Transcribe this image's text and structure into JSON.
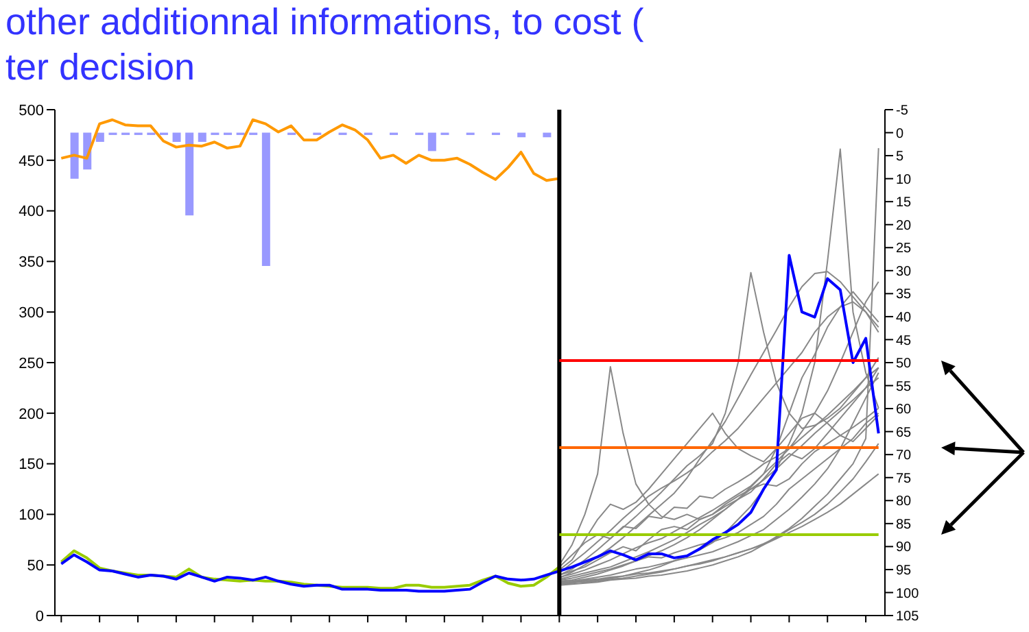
{
  "chart_data": {
    "type": "line",
    "annotations": [
      "other additionnal informations,  to cost (",
      "ter decision"
    ],
    "categories": [
      null,
      null,
      null,
      null,
      null,
      null,
      null,
      null,
      null,
      null,
      null,
      null,
      null,
      null,
      null,
      null,
      null,
      null,
      null,
      null,
      null,
      null,
      null,
      null,
      null,
      null,
      null,
      null,
      null,
      null,
      null,
      null,
      null,
      null,
      null,
      null,
      null,
      null,
      null,
      null,
      null,
      null,
      null,
      null,
      null,
      null,
      null,
      null,
      null,
      null,
      null,
      null,
      null,
      null,
      null,
      null,
      null,
      null,
      null,
      null,
      null,
      null,
      null,
      null,
      null
    ],
    "ylim": [
      0,
      500
    ],
    "yticks": [
      0,
      50,
      100,
      150,
      200,
      250,
      300,
      350,
      400,
      450,
      500
    ],
    "y2lim": [
      105,
      -5
    ],
    "y2ticks": [
      -5,
      0,
      5,
      10,
      15,
      20,
      25,
      30,
      35,
      40,
      45,
      50,
      55,
      60,
      65,
      70,
      75,
      80,
      85,
      90,
      95,
      100,
      105
    ],
    "grid": false,
    "legend": false,
    "marker": "none",
    "ref_lines": [
      {
        "axis": "x",
        "color": "#000000"
      },
      {
        "axis": "y",
        "value": 252,
        "color": "#ff0000"
      },
      {
        "axis": "y",
        "value": 166,
        "color": "#ff6600"
      },
      {
        "axis": "y",
        "value": 80,
        "color": "#99cc00"
      }
    ],
    "series": [
      {
        "type": "bar",
        "axis": "y2",
        "color": "#9999ff",
        "values": [
          null,
          10,
          8,
          2,
          0.5,
          0.5,
          0.5,
          0.5,
          0.5,
          2,
          18,
          2,
          0.5,
          0.5,
          0.5,
          0.5,
          29,
          null,
          0.5,
          null,
          0.5,
          null,
          0.5,
          null,
          0.5,
          null,
          0.5,
          null,
          0.5,
          4,
          0.5,
          null,
          0.5,
          null,
          0.5,
          null,
          1,
          null,
          1,
          null,
          null,
          null,
          null,
          null,
          null,
          null,
          null,
          null,
          null,
          null,
          null,
          null,
          null,
          null,
          null,
          null,
          null,
          null,
          null,
          null,
          null,
          null,
          null,
          null,
          null
        ]
      },
      {
        "color": "#ff9900",
        "values": [
          452,
          455,
          452,
          486,
          490,
          485,
          484,
          484,
          469,
          463,
          465,
          464,
          468,
          462,
          464,
          490,
          486,
          478,
          484,
          470,
          470,
          478,
          485,
          480,
          470,
          452,
          455,
          447,
          455,
          450,
          450,
          452,
          446,
          438,
          431,
          443,
          458,
          437,
          430,
          432,
          null,
          null,
          null,
          null,
          null,
          null,
          null,
          null,
          null,
          null,
          null,
          null,
          null,
          null,
          null,
          null,
          null,
          null,
          null,
          null,
          null,
          null,
          null,
          null,
          null
        ]
      },
      {
        "color": "#888888",
        "values": [
          null,
          null,
          null,
          null,
          null,
          null,
          null,
          null,
          null,
          null,
          null,
          null,
          null,
          null,
          null,
          null,
          null,
          null,
          null,
          null,
          null,
          null,
          null,
          null,
          null,
          null,
          null,
          null,
          null,
          null,
          null,
          null,
          null,
          null,
          null,
          null,
          null,
          null,
          null,
          40,
          44,
          48,
          55,
          62,
          68,
          64,
          75,
          85,
          88,
          85,
          95,
          100,
          108,
          115,
          122,
          135,
          150,
          160,
          155,
          165,
          180,
          195,
          210,
          225,
          245
        ]
      },
      {
        "color": "#888888",
        "values": [
          null,
          null,
          null,
          null,
          null,
          null,
          null,
          null,
          null,
          null,
          null,
          null,
          null,
          null,
          null,
          null,
          null,
          null,
          null,
          null,
          null,
          null,
          null,
          null,
          null,
          null,
          null,
          null,
          null,
          null,
          null,
          null,
          null,
          null,
          null,
          null,
          null,
          null,
          null,
          35,
          37,
          40,
          43,
          46,
          50,
          54,
          58,
          57,
          62,
          66,
          70,
          73,
          77,
          82,
          90,
          98,
          110,
          125,
          135,
          145,
          155,
          165,
          175,
          190,
          200
        ]
      },
      {
        "color": "#888888",
        "values": [
          null,
          null,
          null,
          null,
          null,
          null,
          null,
          null,
          null,
          null,
          null,
          null,
          null,
          null,
          null,
          null,
          null,
          null,
          null,
          null,
          null,
          null,
          null,
          null,
          null,
          null,
          null,
          null,
          null,
          null,
          null,
          null,
          null,
          null,
          null,
          null,
          null,
          null,
          null,
          50,
          70,
          100,
          140,
          246,
          180,
          130,
          110,
          98,
          95,
          100,
          95,
          100,
          110,
          118,
          125,
          130,
          128,
          135,
          150,
          162,
          170,
          178,
          186,
          195,
          205
        ]
      },
      {
        "color": "#888888",
        "values": [
          null,
          null,
          null,
          null,
          null,
          null,
          null,
          null,
          null,
          null,
          null,
          null,
          null,
          null,
          null,
          null,
          null,
          null,
          null,
          null,
          null,
          null,
          null,
          null,
          null,
          null,
          null,
          null,
          null,
          null,
          null,
          null,
          null,
          null,
          null,
          null,
          null,
          null,
          null,
          45,
          55,
          75,
          95,
          110,
          105,
          112,
          125,
          140,
          155,
          170,
          185,
          200,
          180,
          165,
          158,
          152,
          165,
          180,
          195,
          200,
          190,
          178,
          172,
          185,
          198
        ]
      },
      {
        "color": "#888888",
        "values": [
          null,
          null,
          null,
          null,
          null,
          null,
          null,
          null,
          null,
          null,
          null,
          null,
          null,
          null,
          null,
          null,
          null,
          null,
          null,
          null,
          null,
          null,
          null,
          null,
          null,
          null,
          null,
          null,
          null,
          null,
          null,
          null,
          null,
          null,
          null,
          null,
          null,
          null,
          null,
          32,
          33,
          35,
          36,
          38,
          39,
          42,
          45,
          49,
          54,
          59,
          65,
          72,
          82,
          95,
          108,
          125,
          145,
          170,
          200,
          250,
          350,
          461,
          300,
          240,
          205
        ]
      },
      {
        "color": "#888888",
        "values": [
          null,
          null,
          null,
          null,
          null,
          null,
          null,
          null,
          null,
          null,
          null,
          null,
          null,
          null,
          null,
          null,
          null,
          null,
          null,
          null,
          null,
          null,
          null,
          null,
          null,
          null,
          null,
          null,
          null,
          null,
          null,
          null,
          null,
          null,
          null,
          null,
          null,
          null,
          null,
          30,
          31,
          32,
          33,
          35,
          36,
          37,
          39,
          40,
          42,
          44,
          47,
          50,
          54,
          58,
          63,
          70,
          78,
          86,
          96,
          108,
          120,
          135,
          150,
          175,
          462
        ]
      },
      {
        "color": "#888888",
        "values": [
          null,
          null,
          null,
          null,
          null,
          null,
          null,
          null,
          null,
          null,
          null,
          null,
          null,
          null,
          null,
          null,
          null,
          null,
          null,
          null,
          null,
          null,
          null,
          null,
          null,
          null,
          null,
          null,
          null,
          null,
          null,
          null,
          null,
          null,
          null,
          null,
          null,
          null,
          null,
          40,
          46,
          55,
          65,
          76,
          87,
          98,
          110,
          122,
          135,
          148,
          158,
          170,
          200,
          250,
          339,
          280,
          230,
          200,
          185,
          188,
          195,
          205,
          220,
          235,
          255
        ]
      },
      {
        "color": "#888888",
        "values": [
          null,
          null,
          null,
          null,
          null,
          null,
          null,
          null,
          null,
          null,
          null,
          null,
          null,
          null,
          null,
          null,
          null,
          null,
          null,
          null,
          null,
          null,
          null,
          null,
          null,
          null,
          null,
          null,
          null,
          null,
          null,
          null,
          null,
          null,
          null,
          null,
          null,
          null,
          null,
          38,
          41,
          45,
          50,
          55,
          61,
          67,
          72,
          76,
          83,
          90,
          97,
          104,
          112,
          120,
          128,
          140,
          165,
          200,
          235,
          258,
          285,
          305,
          320,
          305,
          290
        ]
      },
      {
        "color": "#888888",
        "values": [
          null,
          null,
          null,
          null,
          null,
          null,
          null,
          null,
          null,
          null,
          null,
          null,
          null,
          null,
          null,
          null,
          null,
          null,
          null,
          null,
          null,
          null,
          null,
          null,
          null,
          null,
          null,
          null,
          null,
          null,
          null,
          null,
          null,
          null,
          null,
          null,
          null,
          null,
          null,
          33,
          34,
          36,
          38,
          40,
          43,
          46,
          48,
          51,
          54,
          57,
          60,
          63,
          68,
          73,
          79,
          85,
          95,
          105,
          117,
          130,
          145,
          165,
          190,
          215,
          240
        ]
      },
      {
        "color": "#888888",
        "values": [
          null,
          null,
          null,
          null,
          null,
          null,
          null,
          null,
          null,
          null,
          null,
          null,
          null,
          null,
          null,
          null,
          null,
          null,
          null,
          null,
          null,
          null,
          null,
          null,
          null,
          null,
          null,
          null,
          null,
          null,
          null,
          null,
          null,
          null,
          null,
          null,
          null,
          null,
          null,
          36,
          39,
          42,
          45,
          48,
          53,
          58,
          63,
          69,
          75,
          82,
          90,
          97,
          105,
          115,
          127,
          140,
          152,
          165,
          182,
          200,
          222,
          250,
          280,
          310,
          330
        ]
      },
      {
        "color": "#888888",
        "values": [
          null,
          null,
          null,
          null,
          null,
          null,
          null,
          null,
          null,
          null,
          null,
          null,
          null,
          null,
          null,
          null,
          null,
          null,
          null,
          null,
          null,
          null,
          null,
          null,
          null,
          null,
          null,
          null,
          null,
          null,
          null,
          null,
          null,
          null,
          null,
          null,
          null,
          null,
          null,
          31,
          32,
          34,
          35,
          37,
          39,
          41,
          42,
          44,
          46,
          49,
          51,
          54,
          58,
          62,
          66,
          71,
          77,
          85,
          92,
          100,
          110,
          122,
          135,
          152,
          170
        ]
      },
      {
        "color": "#888888",
        "values": [
          null,
          null,
          null,
          null,
          null,
          null,
          null,
          null,
          null,
          null,
          null,
          null,
          null,
          null,
          null,
          null,
          null,
          null,
          null,
          null,
          null,
          null,
          null,
          null,
          null,
          null,
          null,
          null,
          null,
          null,
          null,
          null,
          null,
          null,
          null,
          null,
          null,
          null,
          null,
          42,
          52,
          62,
          73,
          84,
          96,
          107,
          118,
          126,
          133,
          141,
          150,
          162,
          173,
          185,
          200,
          215,
          230,
          245,
          260,
          280,
          295,
          305,
          310,
          300,
          280
        ]
      },
      {
        "color": "#888888",
        "values": [
          null,
          null,
          null,
          null,
          null,
          null,
          null,
          null,
          null,
          null,
          null,
          null,
          null,
          null,
          null,
          null,
          null,
          null,
          null,
          null,
          null,
          null,
          null,
          null,
          null,
          null,
          null,
          null,
          null,
          null,
          null,
          null,
          null,
          null,
          null,
          null,
          null,
          null,
          null,
          34,
          35,
          38,
          41,
          45,
          49,
          54,
          59,
          64,
          70,
          77,
          85,
          95,
          105,
          115,
          125,
          134,
          145,
          157,
          168,
          180,
          191,
          202,
          213,
          225,
          235
        ]
      },
      {
        "color": "#888888",
        "values": [
          null,
          null,
          null,
          null,
          null,
          null,
          null,
          null,
          null,
          null,
          null,
          null,
          null,
          null,
          null,
          null,
          null,
          null,
          null,
          null,
          null,
          null,
          null,
          null,
          null,
          null,
          null,
          null,
          null,
          null,
          null,
          null,
          null,
          null,
          null,
          null,
          null,
          null,
          null,
          48,
          60,
          72,
          80,
          76,
          88,
          86,
          98,
          96,
          107,
          106,
          118,
          116,
          125,
          132,
          140,
          150,
          157,
          165,
          176,
          187,
          198,
          210,
          222,
          235,
          245
        ]
      },
      {
        "color": "#888888",
        "values": [
          null,
          null,
          null,
          null,
          null,
          null,
          null,
          null,
          null,
          null,
          null,
          null,
          null,
          null,
          null,
          null,
          null,
          null,
          null,
          null,
          null,
          null,
          null,
          null,
          null,
          null,
          null,
          null,
          null,
          null,
          null,
          null,
          null,
          null,
          null,
          null,
          null,
          null,
          null,
          32,
          33,
          33,
          34,
          36,
          37,
          39,
          41,
          43,
          46,
          49,
          52,
          55,
          58,
          62,
          66,
          70,
          76,
          82,
          88,
          95,
          102,
          110,
          120,
          130,
          140
        ]
      },
      {
        "color": "#888888",
        "values": [
          null,
          null,
          null,
          null,
          null,
          null,
          null,
          null,
          null,
          null,
          null,
          null,
          null,
          null,
          null,
          null,
          null,
          null,
          null,
          null,
          null,
          null,
          null,
          null,
          null,
          null,
          null,
          null,
          null,
          null,
          null,
          null,
          null,
          null,
          null,
          null,
          null,
          null,
          null,
          37,
          43,
          50,
          58,
          67,
          77,
          88,
          99,
          110,
          121,
          136,
          155,
          173,
          192,
          215,
          238,
          260,
          282,
          305,
          325,
          338,
          340,
          330,
          315,
          300,
          285
        ]
      },
      {
        "color": "#99cc00",
        "values": [
          53,
          64,
          57,
          47,
          44,
          42,
          40,
          40,
          39,
          38,
          46,
          38,
          36,
          35,
          34,
          35,
          34,
          34,
          33,
          31,
          30,
          29,
          28,
          28,
          28,
          27,
          27,
          30,
          30,
          28,
          28,
          29,
          30,
          35,
          39,
          32,
          29,
          30,
          38,
          48,
          null,
          null,
          null,
          null,
          null,
          null,
          null,
          null,
          null,
          null,
          null,
          null,
          null,
          null,
          null,
          null,
          null,
          null,
          null,
          null,
          null,
          null,
          null,
          null,
          null
        ]
      },
      {
        "color": "#0000ff",
        "values": [
          51,
          60,
          53,
          45,
          44,
          41,
          38,
          40,
          39,
          36,
          42,
          38,
          34,
          38,
          37,
          35,
          38,
          34,
          31,
          29,
          30,
          30,
          26,
          26,
          26,
          25,
          25,
          25,
          24,
          24,
          24,
          25,
          26,
          33,
          39,
          36,
          35,
          36,
          40,
          44,
          48,
          53,
          58,
          64,
          60,
          55,
          61,
          61,
          57,
          59,
          66,
          75,
          82,
          90,
          102,
          125,
          144,
          356,
          300,
          295,
          333,
          322,
          250,
          274,
          180
        ]
      }
    ]
  }
}
